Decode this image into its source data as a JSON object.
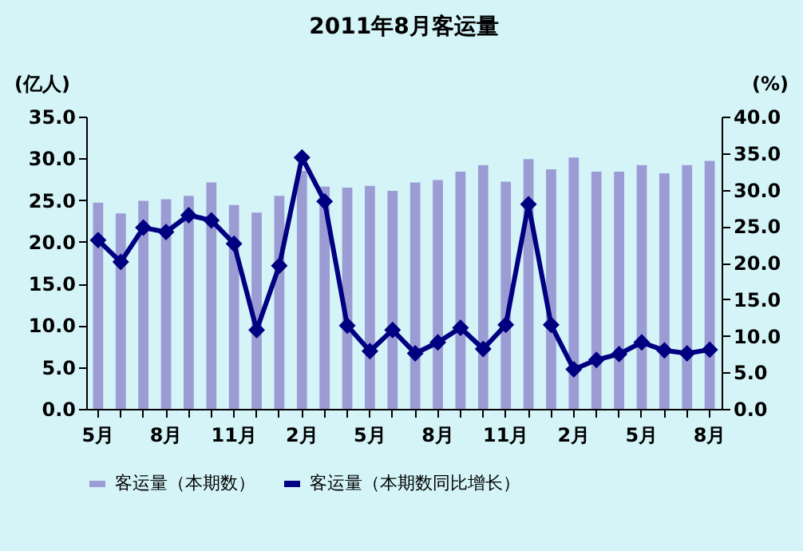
{
  "chart_data": {
    "type": "bar",
    "title": "2011年8月客运量",
    "ylabel": "(亿人)",
    "y2label": "(%)",
    "categories": [
      "5月",
      null,
      null,
      "8月",
      null,
      null,
      "11月",
      null,
      null,
      "2月",
      null,
      null,
      "5月",
      null,
      null,
      "8月",
      null,
      null,
      "11月",
      null,
      null,
      "2月",
      null,
      null,
      "5月",
      null,
      null,
      "8月"
    ],
    "series": [
      {
        "name": "客运量（本期数）",
        "color": "#9c9cd4",
        "values": [
          24.7,
          23.4,
          24.9,
          25.1,
          25.5,
          27.1,
          24.4,
          23.5,
          25.5,
          28.5,
          26.6,
          26.5,
          26.7,
          26.1,
          27.1,
          27.4,
          28.4,
          29.2,
          27.2,
          29.9,
          28.7,
          30.1,
          28.4,
          28.4,
          29.2,
          28.2,
          29.2,
          29.7
        ]
      },
      {
        "name": "客运量（本期数同比增长）",
        "type": "line",
        "axis": "y2",
        "color": "#000080",
        "values": [
          23.1,
          20.1,
          24.8,
          24.2,
          26.5,
          25.8,
          22.6,
          10.8,
          19.6,
          34.4,
          28.4,
          11.4,
          7.9,
          10.8,
          7.6,
          9.1,
          11.1,
          8.2,
          11.5,
          28.0,
          11.5,
          5.4,
          6.7,
          7.5,
          9.1,
          8.0,
          7.6,
          8.1
        ]
      }
    ],
    "ylim": [
      0,
      35
    ],
    "yticks": [
      {
        "value": 0,
        "label": "0.0"
      },
      {
        "value": 5,
        "label": "5.0"
      },
      {
        "value": 10,
        "label": "10.0"
      },
      {
        "value": 15,
        "label": "15.0"
      },
      {
        "value": 20,
        "label": "20.0"
      },
      {
        "value": 25,
        "label": "25.0"
      },
      {
        "value": 30,
        "label": "30.0"
      },
      {
        "value": 35,
        "label": "35.0"
      }
    ],
    "y2lim": [
      0,
      40
    ],
    "y2ticks": [
      {
        "value": 0,
        "label": "0.0"
      },
      {
        "value": 5,
        "label": "5.0"
      },
      {
        "value": 10,
        "label": "10.0"
      },
      {
        "value": 15,
        "label": "15.0"
      },
      {
        "value": 20,
        "label": "20.0"
      },
      {
        "value": 25,
        "label": "25.0"
      },
      {
        "value": 30,
        "label": "30.0"
      },
      {
        "value": 35,
        "label": "35.0"
      },
      {
        "value": 40,
        "label": "40.0"
      }
    ],
    "grid": false,
    "legend": "bottom",
    "marker": "diamond",
    "line_style": "solid"
  }
}
